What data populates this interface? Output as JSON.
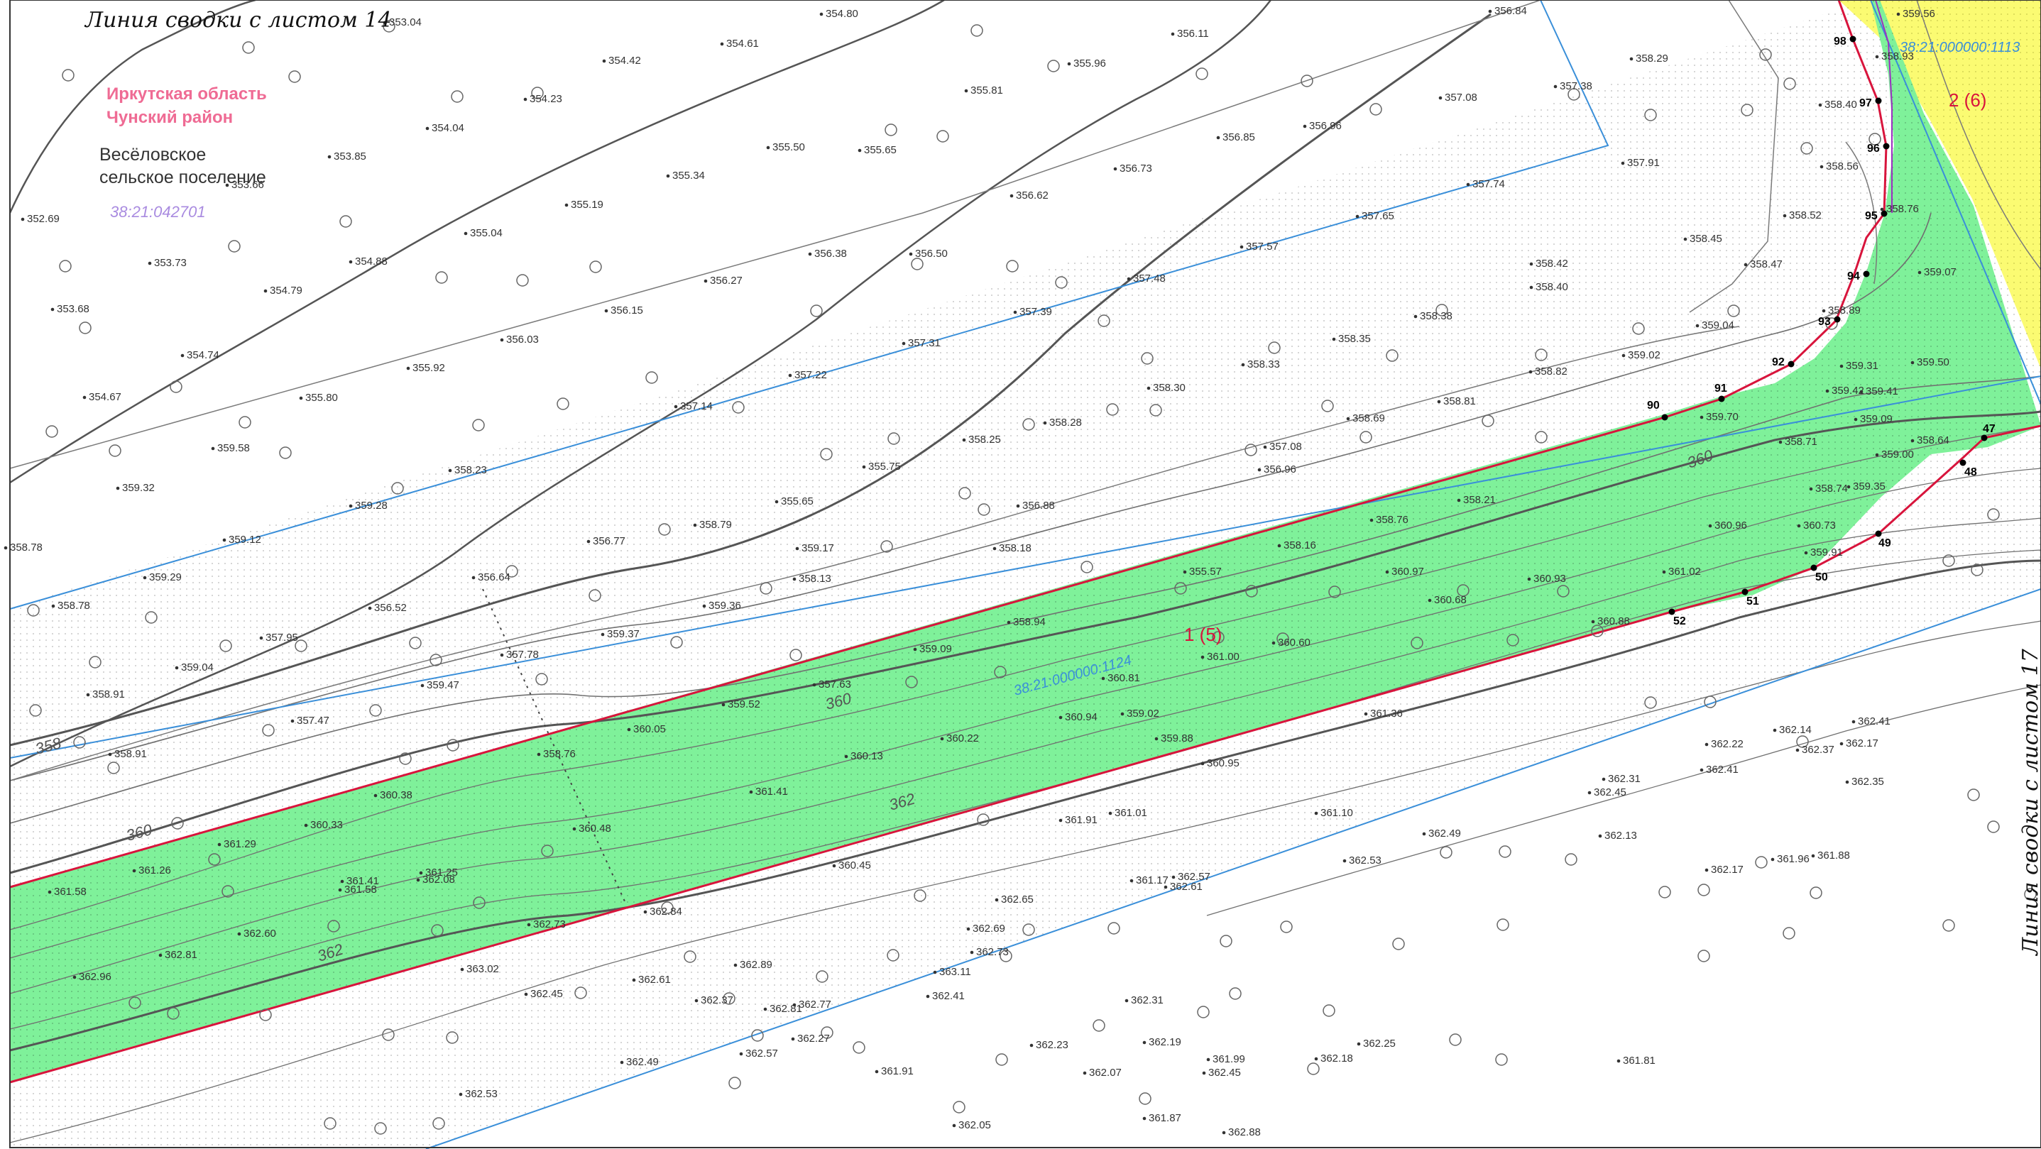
{
  "sheet_links": {
    "top": "Линия сводки с листом 14",
    "right": "Линия сводки с листом 17"
  },
  "admin": {
    "region": "Иркутская область",
    "district": "Чунский район",
    "settlement_line1": "Весёловское",
    "settlement_line2": "сельское поселение",
    "quarter": "38:21:042701"
  },
  "parcels": [
    {
      "cadastral": "38:21:000000:1124",
      "label": "1 (5)"
    },
    {
      "cadastral": "38:21:000000:1113",
      "label": "2 (6)"
    }
  ],
  "colors": {
    "green_parcel": "#7ff19a",
    "yellow_parcel": "#fbfb72",
    "boundary_red": "#d8143c",
    "blue_line": "#3a8fd9",
    "region_pink": "#ef6b94",
    "quarter_purple": "#a98be0",
    "contour_gray": "#707070"
  },
  "points": [
    {
      "n": "98"
    },
    {
      "n": "97"
    },
    {
      "n": "96"
    },
    {
      "n": "95"
    },
    {
      "n": "94"
    },
    {
      "n": "93"
    },
    {
      "n": "92"
    },
    {
      "n": "91"
    },
    {
      "n": "90"
    },
    {
      "n": "47"
    },
    {
      "n": "48"
    },
    {
      "n": "49"
    },
    {
      "n": "50"
    },
    {
      "n": "51"
    },
    {
      "n": "52"
    }
  ],
  "contour_labels": [
    "358",
    "360",
    "360",
    "360",
    "362",
    "362"
  ],
  "elevations": [
    {
      "v": "353.04"
    },
    {
      "v": "354.42"
    },
    {
      "v": "354.61"
    },
    {
      "v": "354.80"
    },
    {
      "v": "355.96"
    },
    {
      "v": "356.11"
    },
    {
      "v": "356.84"
    },
    {
      "v": "358.29"
    },
    {
      "v": "355.81"
    },
    {
      "v": "354.23"
    },
    {
      "v": "357.08"
    },
    {
      "v": "357.38"
    },
    {
      "v": "358.40"
    },
    {
      "v": "354.04"
    },
    {
      "v": "355.50"
    },
    {
      "v": "355.65"
    },
    {
      "v": "356.85"
    },
    {
      "v": "356.96"
    },
    {
      "v": "353.85"
    },
    {
      "v": "353.66"
    },
    {
      "v": "355.34"
    },
    {
      "v": "356.73"
    },
    {
      "v": "357.91"
    },
    {
      "v": "358.56"
    },
    {
      "v": "355.19"
    },
    {
      "v": "356.62"
    },
    {
      "v": "357.74"
    },
    {
      "v": "352.69"
    },
    {
      "v": "355.04"
    },
    {
      "v": "357.65"
    },
    {
      "v": "358.52"
    },
    {
      "v": "358.76"
    },
    {
      "v": "357.57"
    },
    {
      "v": "358.45"
    },
    {
      "v": "353.73"
    },
    {
      "v": "354.88"
    },
    {
      "v": "356.38"
    },
    {
      "v": "356.50"
    },
    {
      "v": "358.47"
    },
    {
      "v": "358.42"
    },
    {
      "v": "359.07"
    },
    {
      "v": "356.27"
    },
    {
      "v": "357.48"
    },
    {
      "v": "354.79"
    },
    {
      "v": "358.40"
    },
    {
      "v": "358.89"
    },
    {
      "v": "353.68"
    },
    {
      "v": "356.15"
    },
    {
      "v": "357.39"
    },
    {
      "v": "358.38"
    },
    {
      "v": "359.04"
    },
    {
      "v": "356.03"
    },
    {
      "v": "357.31"
    },
    {
      "v": "358.35"
    },
    {
      "v": "354.74"
    },
    {
      "v": "358.33"
    },
    {
      "v": "359.02"
    },
    {
      "v": "355.92"
    },
    {
      "v": "357.22"
    },
    {
      "v": "358.82"
    },
    {
      "v": "358.30"
    },
    {
      "v": "359.42"
    },
    {
      "v": "359.41"
    },
    {
      "v": "355.80"
    },
    {
      "v": "354.67"
    },
    {
      "v": "357.14"
    },
    {
      "v": "358.81"
    },
    {
      "v": "359.70"
    },
    {
      "v": "358.28"
    },
    {
      "v": "358.69"
    },
    {
      "v": "358.25"
    },
    {
      "v": "357.08"
    },
    {
      "v": "358.71"
    },
    {
      "v": "359.58"
    },
    {
      "v": "355.75"
    },
    {
      "v": "358.23"
    },
    {
      "v": "356.96"
    },
    {
      "v": "358.74"
    },
    {
      "v": "359.32"
    },
    {
      "v": "355.65"
    },
    {
      "v": "358.21"
    },
    {
      "v": "359.28"
    },
    {
      "v": "356.88"
    },
    {
      "v": "358.79"
    },
    {
      "v": "358.18"
    },
    {
      "v": "358.76"
    },
    {
      "v": "359.12"
    },
    {
      "v": "356.77"
    },
    {
      "v": "358.16"
    },
    {
      "v": "359.17"
    },
    {
      "v": "358.78"
    },
    {
      "v": "355.57"
    },
    {
      "v": "359.29"
    },
    {
      "v": "356.64"
    },
    {
      "v": "358.13"
    },
    {
      "v": "358.78"
    },
    {
      "v": "359.36"
    },
    {
      "v": "356.52"
    },
    {
      "v": "358.94"
    },
    {
      "v": "357.95"
    },
    {
      "v": "359.37"
    },
    {
      "v": "357.78"
    },
    {
      "v": "359.09"
    },
    {
      "v": "359.04"
    },
    {
      "v": "359.47"
    },
    {
      "v": "357.63"
    },
    {
      "v": "358.91"
    },
    {
      "v": "359.52"
    },
    {
      "v": "357.47"
    },
    {
      "v": "359.88"
    },
    {
      "v": "359.02"
    },
    {
      "v": "358.91"
    },
    {
      "v": "360.05"
    },
    {
      "v": "360.22"
    },
    {
      "v": "358.76"
    },
    {
      "v": "360.13"
    },
    {
      "v": "360.38"
    },
    {
      "v": "360.33"
    },
    {
      "v": "361.41"
    },
    {
      "v": "360.48"
    },
    {
      "v": "361.29"
    },
    {
      "v": "361.26"
    },
    {
      "v": "360.45"
    },
    {
      "v": "361.25"
    },
    {
      "v": "361.41"
    },
    {
      "v": "362.08"
    },
    {
      "v": "361.58"
    },
    {
      "v": "361.58"
    },
    {
      "v": "362.60"
    },
    {
      "v": "362.73"
    },
    {
      "v": "362.81"
    },
    {
      "v": "362.89"
    },
    {
      "v": "362.96"
    },
    {
      "v": "363.02"
    },
    {
      "v": "363.11"
    },
    {
      "v": "362.37"
    },
    {
      "v": "362.41"
    },
    {
      "v": "362.45"
    },
    {
      "v": "362.61"
    },
    {
      "v": "362.31"
    },
    {
      "v": "362.27"
    },
    {
      "v": "362.57"
    },
    {
      "v": "362.53"
    },
    {
      "v": "362.23"
    },
    {
      "v": "362.49"
    },
    {
      "v": "362.45"
    },
    {
      "v": "362.19"
    },
    {
      "v": "361.99"
    },
    {
      "v": "362.25"
    },
    {
      "v": "362.18"
    },
    {
      "v": "361.81"
    },
    {
      "v": "361.91"
    },
    {
      "v": "362.07"
    },
    {
      "v": "361.87"
    },
    {
      "v": "362.05"
    },
    {
      "v": "362.88"
    },
    {
      "v": "362.84"
    },
    {
      "v": "362.81"
    },
    {
      "v": "362.77"
    },
    {
      "v": "362.73"
    },
    {
      "v": "362.69"
    },
    {
      "v": "362.65"
    },
    {
      "v": "362.61"
    },
    {
      "v": "362.57"
    },
    {
      "v": "362.53"
    },
    {
      "v": "362.49"
    },
    {
      "v": "362.45"
    },
    {
      "v": "362.41"
    },
    {
      "v": "362.37"
    },
    {
      "v": "362.35"
    },
    {
      "v": "362.41"
    },
    {
      "v": "362.17"
    },
    {
      "v": "362.14"
    },
    {
      "v": "362.22"
    },
    {
      "v": "362.31"
    },
    {
      "v": "362.13"
    },
    {
      "v": "362.17"
    },
    {
      "v": "361.96"
    },
    {
      "v": "361.88"
    },
    {
      "v": "361.91"
    },
    {
      "v": "361.17"
    },
    {
      "v": "361.36"
    },
    {
      "v": "361.01"
    },
    {
      "v": "361.10"
    },
    {
      "v": "360.95"
    },
    {
      "v": "360.94"
    },
    {
      "v": "360.81"
    },
    {
      "v": "361.00"
    },
    {
      "v": "360.60"
    },
    {
      "v": "360.97"
    },
    {
      "v": "360.68"
    },
    {
      "v": "360.93"
    },
    {
      "v": "360.88"
    },
    {
      "v": "361.02"
    },
    {
      "v": "360.96"
    },
    {
      "v": "360.73"
    },
    {
      "v": "359.91"
    },
    {
      "v": "359.35"
    },
    {
      "v": "359.00"
    },
    {
      "v": "358.64"
    },
    {
      "v": "359.09"
    },
    {
      "v": "359.31"
    },
    {
      "v": "359.50"
    },
    {
      "v": "359.56"
    },
    {
      "v": "358.93"
    }
  ]
}
